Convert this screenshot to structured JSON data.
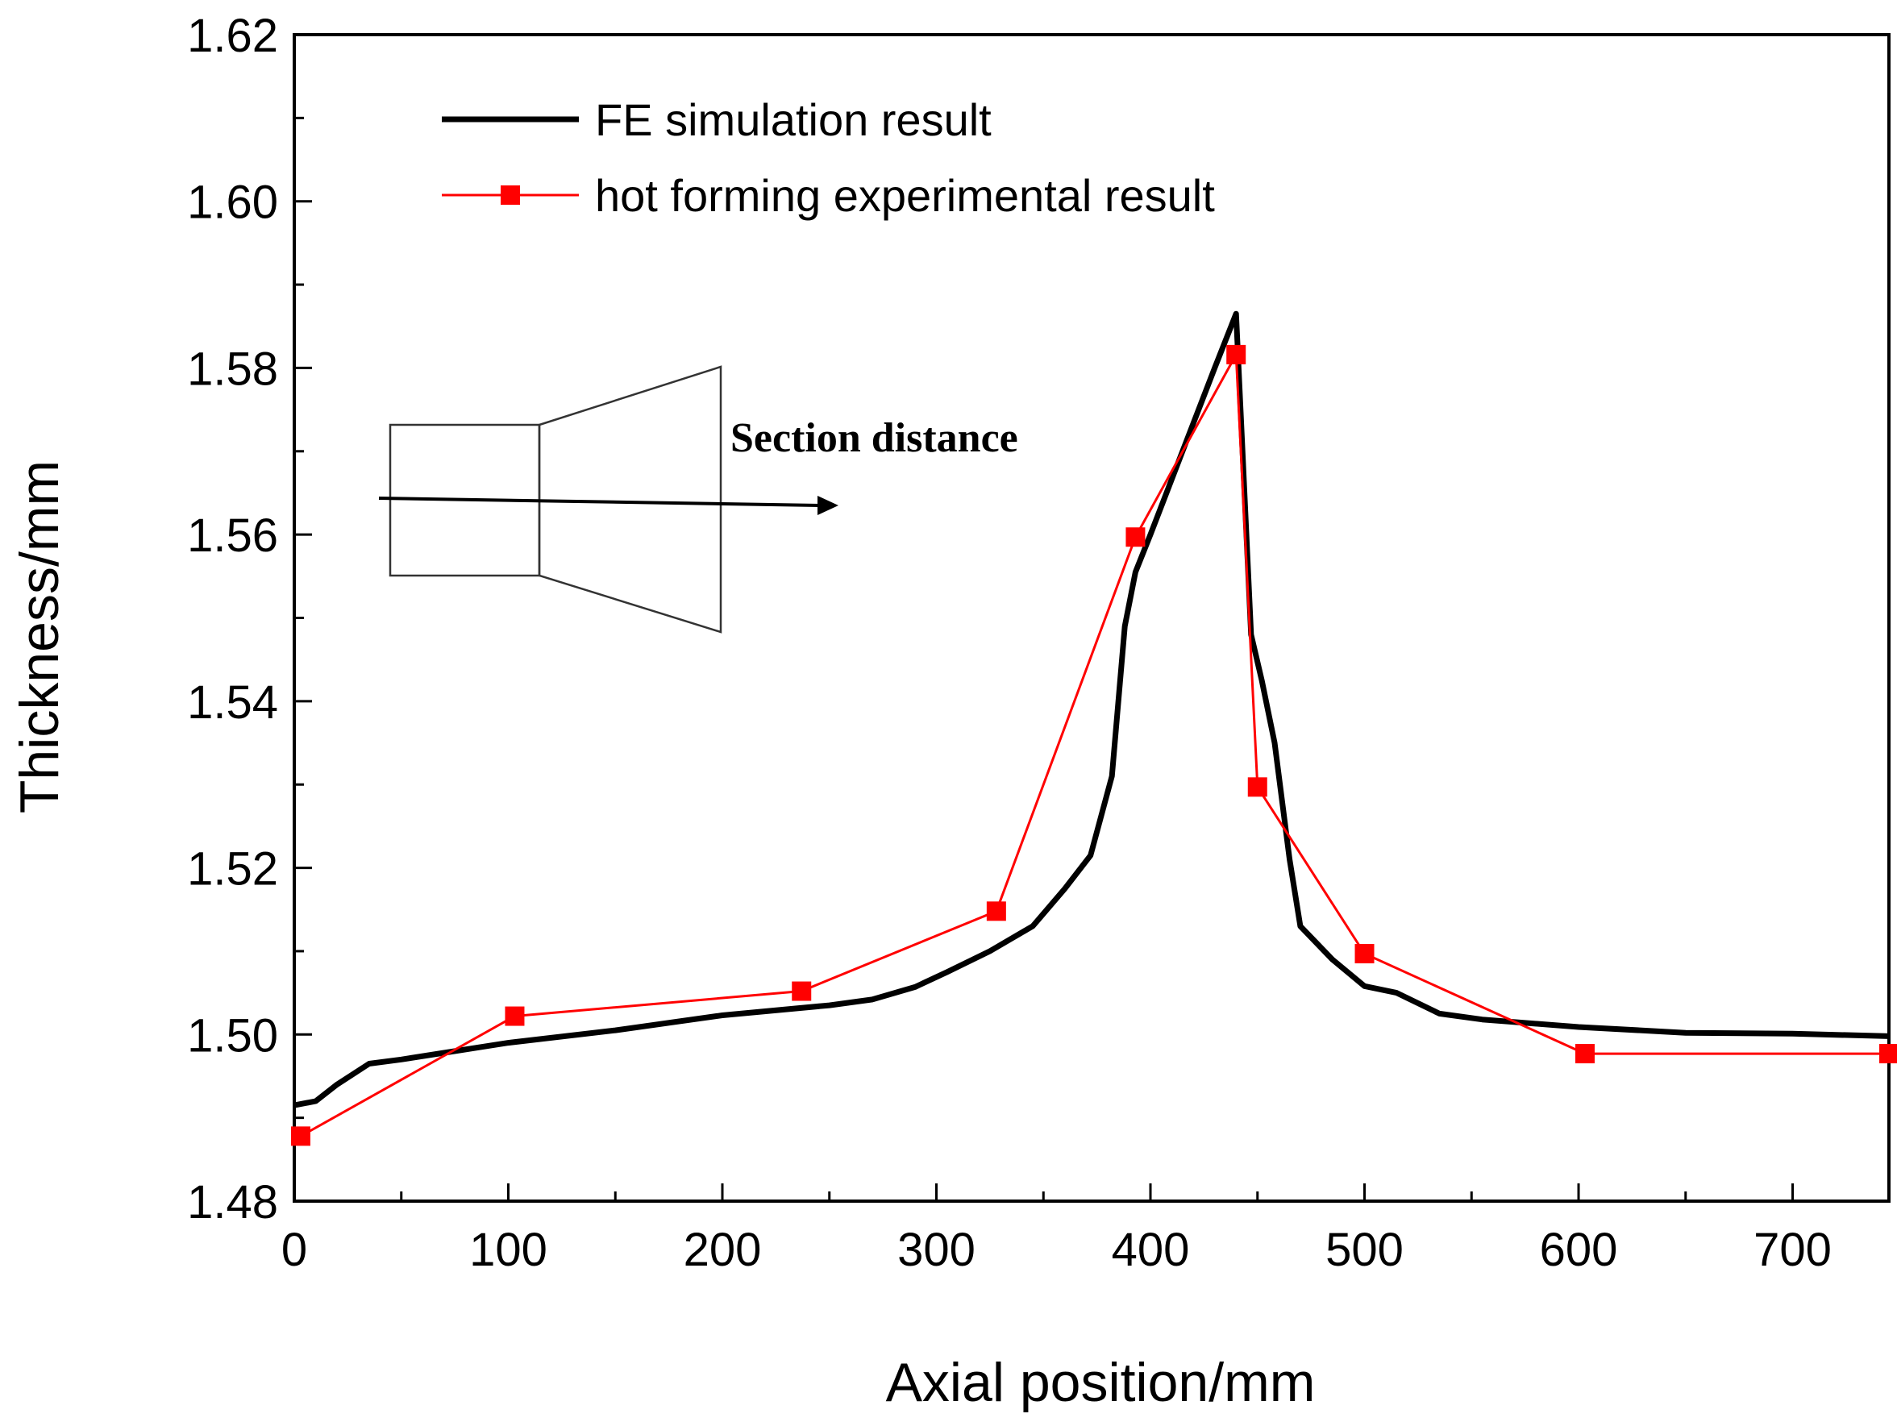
{
  "chart_data": {
    "type": "line",
    "title": "",
    "xlabel": "Axial position/mm",
    "ylabel": "Thickness/mm",
    "xlim": [
      0,
      745
    ],
    "ylim": [
      1.48,
      1.62
    ],
    "x_ticks": [
      0,
      100,
      200,
      300,
      400,
      500,
      600,
      700
    ],
    "y_ticks": [
      1.48,
      1.5,
      1.52,
      1.54,
      1.56,
      1.58,
      1.6,
      1.62
    ],
    "x_tick_labels": [
      "0",
      "100",
      "200",
      "300",
      "400",
      "500",
      "600",
      "700"
    ],
    "y_tick_labels": [
      "1.48",
      "1.50",
      "1.52",
      "1.54",
      "1.56",
      "1.58",
      "1.60",
      "1.62"
    ],
    "grid": false,
    "legend_position": "top-left",
    "series": [
      {
        "name": "FE simulation result",
        "color": "#000000",
        "marker": "none",
        "x": [
          0,
          10,
          20,
          35,
          50,
          70,
          100,
          150,
          200,
          250,
          270,
          290,
          305,
          325,
          345,
          360,
          372,
          382,
          388,
          393,
          400,
          415,
          430,
          440,
          443,
          447,
          452,
          458,
          465,
          470,
          485,
          500,
          515,
          535,
          555,
          600,
          650,
          700,
          745
        ],
        "y": [
          1.4915,
          1.492,
          1.494,
          1.4965,
          1.497,
          1.4978,
          1.499,
          1.5005,
          1.5023,
          1.5035,
          1.5042,
          1.5057,
          1.5075,
          1.51,
          1.513,
          1.5175,
          1.5215,
          1.531,
          1.549,
          1.5555,
          1.56,
          1.57,
          1.58,
          1.5865,
          1.57,
          1.548,
          1.5425,
          1.535,
          1.521,
          1.513,
          1.509,
          1.5058,
          1.505,
          1.5025,
          1.5018,
          1.5009,
          1.5002,
          1.5001,
          1.4998
        ]
      },
      {
        "name": "hot forming experimental result",
        "color": "#ff0000",
        "marker": "square",
        "x": [
          3,
          103,
          237,
          328,
          393,
          440,
          450,
          500,
          603,
          745
        ],
        "y": [
          1.4878,
          1.5022,
          1.5052,
          1.5148,
          1.5597,
          1.5816,
          1.5297,
          1.5097,
          1.4977,
          1.4977
        ]
      }
    ],
    "annotations": [
      "Section distance"
    ]
  }
}
